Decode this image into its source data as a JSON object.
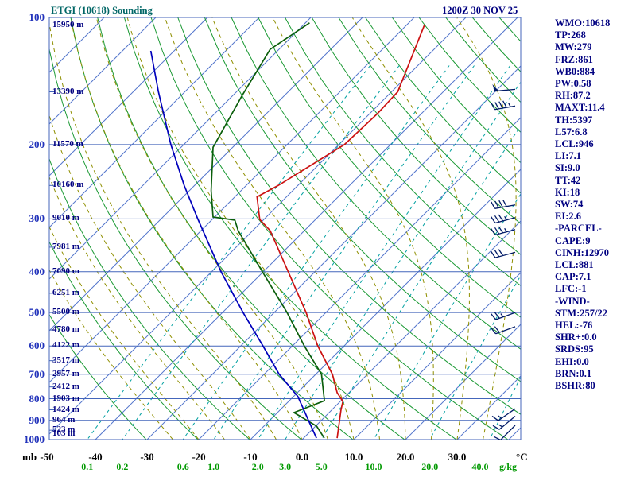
{
  "title": "ETGI (10618) Sounding",
  "datetime": "1200Z 30 NOV 25",
  "stats_panel": {
    "lines": [
      "WMO:10618",
      "TP:268",
      "MW:279",
      "FRZ:861",
      "WB0:884",
      "PW:0.58",
      "RH:87.2",
      "MAXT:11.4",
      "TH:5397",
      "L57:6.8",
      "LCL:946",
      "LI:7.1",
      "SI:9.0",
      "TT:42",
      "KI:18",
      "SW:74",
      "EI:2.6",
      "-PARCEL-",
      "CAPE:9",
      "CINH:12970",
      "LCL:881",
      "CAP:7.1",
      "LFC:-1",
      "-WIND-",
      "STM:257/22",
      "HEL:-76",
      "SHR+:0.0",
      "SRDS:95",
      "EHI:0.0",
      "BRN:0.1",
      "BSHR:80"
    ]
  },
  "axes": {
    "pressure_unit": "mb",
    "temp_unit": "°C",
    "mixing_unit": "g/kg",
    "pressure_ticks": [
      100,
      200,
      300,
      400,
      500,
      600,
      700,
      800,
      900,
      1000
    ],
    "temp_ticks": [
      {
        "label": "-50",
        "t": -50
      },
      {
        "label": "-40",
        "t": -40
      },
      {
        "label": "-30",
        "t": -30
      },
      {
        "label": "-20",
        "t": -20
      },
      {
        "label": "-10",
        "t": -10
      },
      {
        "label": "0.0",
        "t": 0
      },
      {
        "label": "10.0",
        "t": 10
      },
      {
        "label": "20.0",
        "t": 20
      },
      {
        "label": "30.0",
        "t": 30
      }
    ],
    "mixing_ticks": [
      {
        "label": "0.1",
        "w": 0.1
      },
      {
        "label": "0.2",
        "w": 0.2
      },
      {
        "label": "0.6",
        "w": 0.6
      },
      {
        "label": "1.0",
        "w": 1.0
      },
      {
        "label": "2.0",
        "w": 2.0
      },
      {
        "label": "3.0",
        "w": 3.0
      },
      {
        "label": "5.0",
        "w": 5.0
      },
      {
        "label": "10.0",
        "w": 10.0
      },
      {
        "label": "20.0",
        "w": 20.0
      },
      {
        "label": "40.0",
        "w": 40.0
      }
    ],
    "height_labels": [
      {
        "p": 100,
        "label": "15950 m"
      },
      {
        "p": 150,
        "label": "13390 m"
      },
      {
        "p": 200,
        "label": "11570 m"
      },
      {
        "p": 250,
        "label": "10160 m"
      },
      {
        "p": 300,
        "label": "9010 m"
      },
      {
        "p": 350,
        "label": "7981 m"
      },
      {
        "p": 400,
        "label": "7090 m"
      },
      {
        "p": 450,
        "label": "6251 m"
      },
      {
        "p": 500,
        "label": "5500 m"
      },
      {
        "p": 550,
        "label": "4780 m"
      },
      {
        "p": 600,
        "label": "4122 m"
      },
      {
        "p": 650,
        "label": "3517 m"
      },
      {
        "p": 700,
        "label": "2957 m"
      },
      {
        "p": 750,
        "label": "2412 m"
      },
      {
        "p": 800,
        "label": "1903 m"
      },
      {
        "p": 850,
        "label": "1424 m"
      },
      {
        "p": 900,
        "label": "964 m"
      },
      {
        "p": 950,
        "label": "523 m"
      },
      {
        "p": 1000,
        "label": "103 m"
      }
    ]
  },
  "chart_data": {
    "type": "line",
    "chart_kind": "skew-t-log-p-sounding",
    "title": "ETGI (10618) Sounding",
    "xlabel": "Temperature (°C) / Mixing ratio (g/kg)",
    "ylabel": "Pressure (mb)",
    "pressure_range_mb": [
      100,
      1000
    ],
    "temp_axis_range_c": [
      -50,
      35
    ],
    "isotherm_step_c": 10,
    "grid": {
      "isotherms_c": [
        -120,
        -110,
        -100,
        -90,
        -80,
        -70,
        -60,
        -50,
        -40,
        -30,
        -20,
        -10,
        0,
        10,
        20,
        30,
        40
      ],
      "mixing_ratio_lines_gkg": [
        0.1,
        0.2,
        0.6,
        1.0,
        2.0,
        3.0,
        5.0,
        10.0,
        20.0,
        40.0
      ],
      "dry_adiabats_theta_k_step": 10,
      "moist_adiabats_t0_c": [
        -25,
        -20,
        -15,
        -10,
        -5,
        0,
        5,
        10,
        15,
        20,
        25,
        30,
        35
      ]
    },
    "series": [
      {
        "name": "temperature",
        "units": [
          "mb",
          "C"
        ],
        "points": [
          [
            992,
            6.5
          ],
          [
            851,
            1.8
          ],
          [
            812,
            0.5
          ],
          [
            774,
            -2.3
          ],
          [
            700,
            -6.8
          ],
          [
            600,
            -15.1
          ],
          [
            500,
            -23.8
          ],
          [
            400,
            -35.2
          ],
          [
            320,
            -46.6
          ],
          [
            301,
            -50.8
          ],
          [
            266,
            -55.7
          ],
          [
            250,
            -53.8
          ],
          [
            200,
            -48.9
          ],
          [
            169,
            -48.5
          ],
          [
            150,
            -48.8
          ],
          [
            104,
            -56.6
          ]
        ]
      },
      {
        "name": "dewpoint",
        "units": [
          "mb",
          "C"
        ],
        "points": [
          [
            992,
            4.0
          ],
          [
            929,
            0.2
          ],
          [
            863,
            -6.8
          ],
          [
            809,
            -3.2
          ],
          [
            700,
            -8.9
          ],
          [
            600,
            -17.7
          ],
          [
            500,
            -27.5
          ],
          [
            400,
            -40.2
          ],
          [
            320,
            -52.8
          ],
          [
            302,
            -55.5
          ],
          [
            297,
            -60.3
          ],
          [
            257,
            -65.8
          ],
          [
            203,
            -73.8
          ],
          [
            153,
            -78.2
          ],
          [
            119,
            -81.7
          ],
          [
            103,
            -79.2
          ]
        ]
      },
      {
        "name": "wet-bulb",
        "units": [
          "mb",
          "C"
        ],
        "points": [
          [
            992,
            2.5
          ],
          [
            900,
            -2.5
          ],
          [
            790,
            -9.2
          ],
          [
            700,
            -17.1
          ],
          [
            600,
            -25.7
          ],
          [
            500,
            -36.0
          ],
          [
            400,
            -48.2
          ],
          [
            300,
            -62.9
          ],
          [
            250,
            -72.0
          ],
          [
            200,
            -82.5
          ],
          [
            150,
            -95.1
          ],
          [
            120,
            -104.5
          ]
        ]
      }
    ],
    "wind_barbs": [
      {
        "p": 148,
        "spd": 50,
        "dir": 265
      },
      {
        "p": 162,
        "spd": 45,
        "dir": 260
      },
      {
        "p": 278,
        "spd": 40,
        "dir": 260
      },
      {
        "p": 298,
        "spd": 35,
        "dir": 255
      },
      {
        "p": 318,
        "spd": 35,
        "dir": 255
      },
      {
        "p": 360,
        "spd": 30,
        "dir": 255
      },
      {
        "p": 500,
        "spd": 25,
        "dir": 250
      },
      {
        "p": 540,
        "spd": 20,
        "dir": 250
      },
      {
        "p": 845,
        "spd": 15,
        "dir": 235
      },
      {
        "p": 880,
        "spd": 15,
        "dir": 230
      },
      {
        "p": 925,
        "spd": 10,
        "dir": 225
      }
    ],
    "legend": "none"
  },
  "colors": {
    "title": "#006666",
    "text_navy": "#000080",
    "pressure_labels": "#2233bb",
    "isotherms": "#5577cc",
    "pressure_lines": "#4466bb",
    "dry_adiabats": "#1a9933",
    "moist_adiabats": "#8f8f00",
    "mixing_lines": "#00a0a0",
    "mixing_labels": "#009900",
    "temperature_trace": "#cc1111",
    "dewpoint_trace": "#0b5e0b",
    "wetbulb_trace": "#0000bb",
    "wind_barbs": "#001a66"
  }
}
